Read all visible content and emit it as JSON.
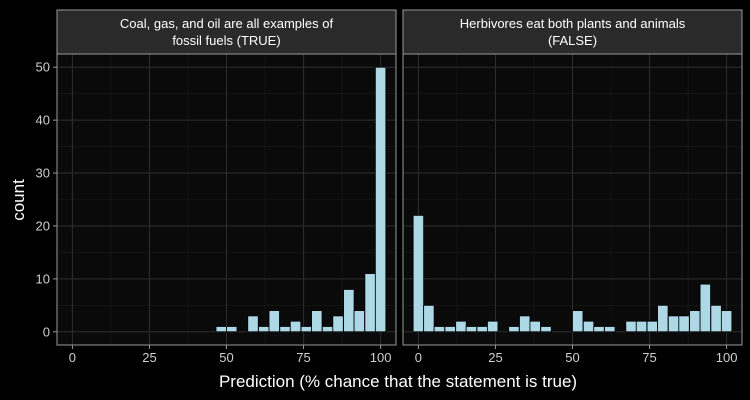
{
  "chart_data": {
    "type": "bar",
    "subtype": "faceted-histogram",
    "xlabel": "Prediction (% chance that the statement is true)",
    "ylabel": "count",
    "xlim": [
      -5,
      105
    ],
    "ylim": [
      -2.5,
      52.5
    ],
    "x_ticks": [
      0,
      25,
      50,
      75,
      100
    ],
    "y_ticks": [
      0,
      10,
      20,
      30,
      40,
      50
    ],
    "bin_width": 3.4,
    "bar_color": "#add8e6",
    "colors": {
      "background": "#000000",
      "panel": "#0a0a0a",
      "strip": "#2a2a2a",
      "grid_major": "#2e2e2e",
      "grid_minor": "#1a1a1a",
      "border": "#9a9a9a",
      "bar_outline": "#000000"
    },
    "panels": [
      {
        "title_lines": [
          "Coal, gas, and oil are all examples of",
          "fossil fuels (TRUE)"
        ],
        "x": [
          0,
          3.4,
          6.8,
          10.3,
          13.8,
          17.2,
          20.7,
          24.1,
          27.6,
          31.0,
          34.5,
          37.9,
          41.4,
          44.8,
          48.3,
          51.7,
          55.2,
          58.6,
          62.1,
          65.5,
          69.0,
          72.4,
          75.9,
          79.3,
          82.8,
          86.2,
          89.7,
          93.1,
          96.6,
          100.0
        ],
        "counts": [
          0,
          0,
          0,
          0,
          0,
          0,
          0,
          0,
          0,
          0,
          0,
          0,
          0,
          0,
          1,
          1,
          0,
          3,
          1,
          4,
          1,
          2,
          1,
          4,
          1,
          3,
          8,
          4,
          11,
          50
        ]
      },
      {
        "title_lines": [
          "Herbivores eat both plants and animals",
          "(FALSE)"
        ],
        "x": [
          0,
          3.4,
          6.8,
          10.3,
          13.8,
          17.2,
          20.7,
          24.1,
          27.6,
          31.0,
          34.5,
          37.9,
          41.4,
          44.8,
          48.3,
          51.7,
          55.2,
          58.6,
          62.1,
          65.5,
          69.0,
          72.4,
          75.9,
          79.3,
          82.8,
          86.2,
          89.7,
          93.1,
          96.6,
          100.0
        ],
        "counts": [
          22,
          5,
          1,
          1,
          2,
          1,
          1,
          2,
          0,
          1,
          3,
          2,
          1,
          0,
          0,
          4,
          2,
          1,
          1,
          0,
          2,
          2,
          2,
          5,
          3,
          3,
          4,
          9,
          5,
          4
        ]
      }
    ]
  }
}
